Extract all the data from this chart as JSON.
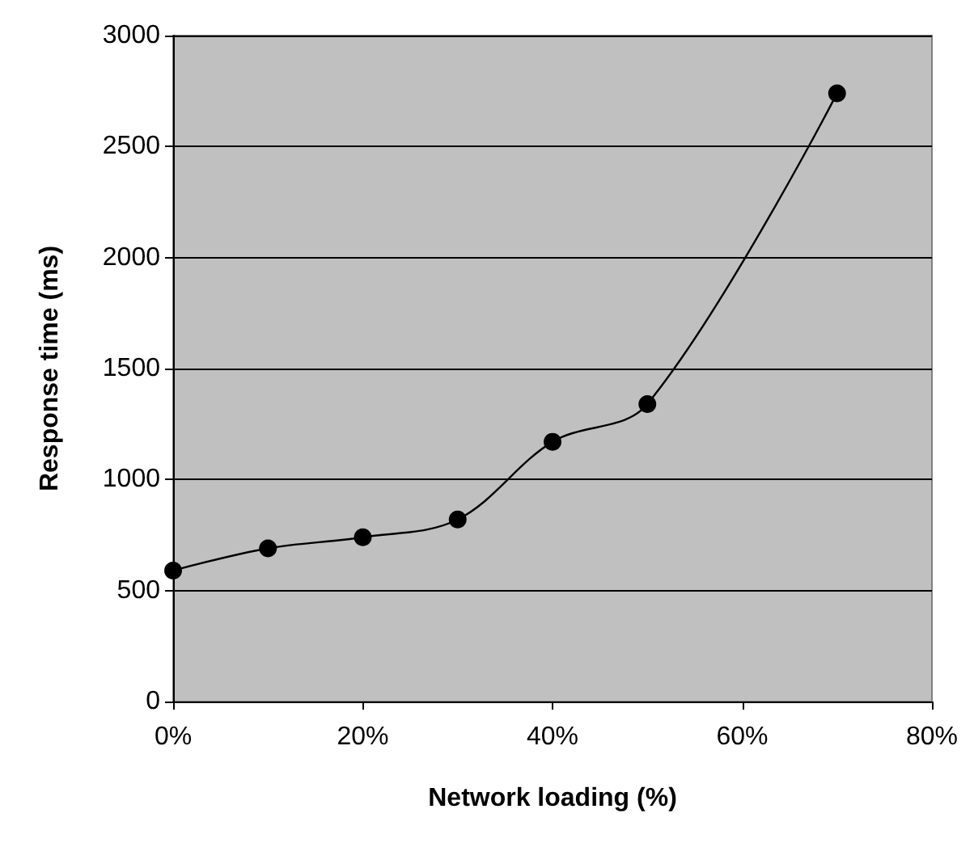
{
  "chart_data": {
    "type": "line",
    "xlabel": "Network loading (%)",
    "ylabel": "Response time (ms)",
    "x": [
      0,
      10,
      20,
      30,
      40,
      50,
      70
    ],
    "series": [
      {
        "color": "#000000",
        "values": [
          590,
          690,
          740,
          820,
          1170,
          1340,
          2740
        ]
      }
    ],
    "xlim": [
      0,
      80
    ],
    "xticks": [
      {
        "value": 0,
        "label": "0%"
      },
      {
        "value": 20,
        "label": "20%"
      },
      {
        "value": 40,
        "label": "40%"
      },
      {
        "value": 60,
        "label": "60%"
      },
      {
        "value": 80,
        "label": "80%"
      }
    ],
    "ylim": [
      0,
      3000
    ],
    "yticks": [
      0,
      500,
      1000,
      1500,
      2000,
      2500,
      3000
    ],
    "grid": "y",
    "marker": "circle",
    "line_style": "solid"
  }
}
